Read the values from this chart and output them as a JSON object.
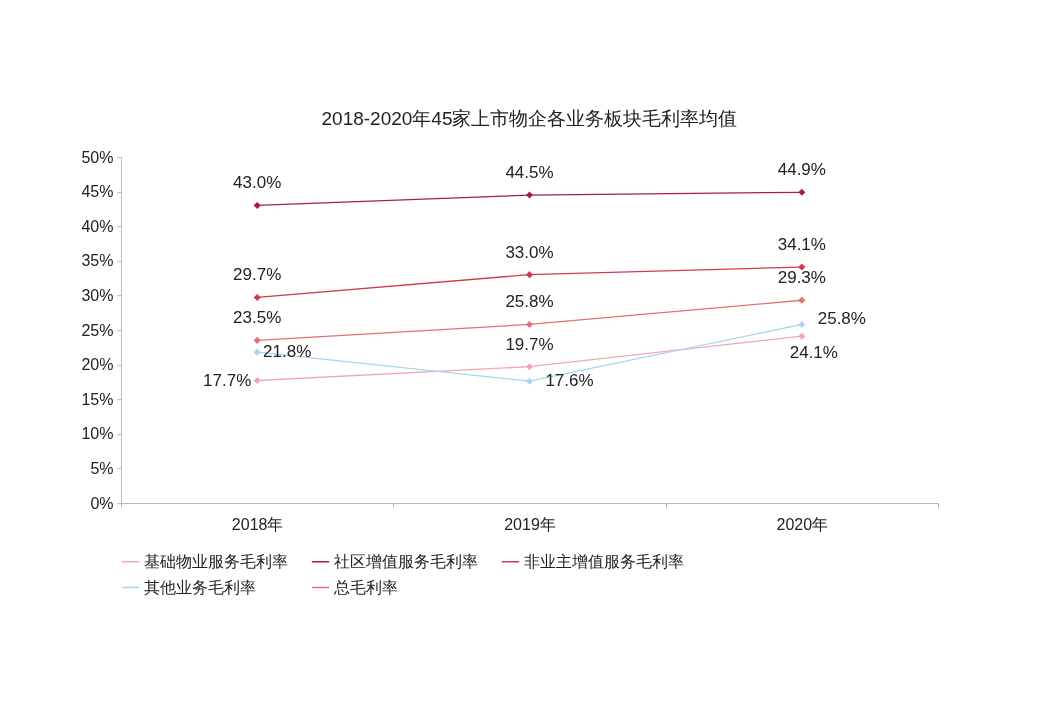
{
  "chart_data": {
    "type": "line",
    "title": "2018-2020年45家上市物企各业务板块毛利率均值",
    "categories": [
      "2018年",
      "2019年",
      "2020年"
    ],
    "series": [
      {
        "name": "基础物业服务毛利率",
        "color": "#f0a8b8",
        "values": [
          17.7,
          19.7,
          24.1
        ],
        "value_labels": [
          "17.7%",
          "19.7%",
          "24.1%"
        ]
      },
      {
        "name": "社区增值服务毛利率",
        "color": "#a3203c",
        "values": [
          43.0,
          44.5,
          44.9
        ],
        "value_labels": [
          "43.0%",
          "44.5%",
          "44.9%"
        ]
      },
      {
        "name": "非业主增值服务毛利率",
        "color": "#d23a4c",
        "values": [
          29.7,
          33.0,
          34.1
        ],
        "value_labels": [
          "29.7%",
          "33.0%",
          "34.1%"
        ]
      },
      {
        "name": "其他业务毛利率",
        "color": "#a9d6ee",
        "values": [
          21.8,
          17.6,
          25.8
        ],
        "value_labels": [
          "21.8%",
          "17.6%",
          "25.8%"
        ]
      },
      {
        "name": "总毛利率",
        "color": "#e07275",
        "values": [
          23.5,
          25.8,
          29.3
        ],
        "value_labels": [
          "23.5%",
          "25.8%",
          "29.3%"
        ]
      }
    ],
    "ylim": [
      0,
      50
    ],
    "yticks": [
      {
        "value": 0,
        "label": "0%"
      },
      {
        "value": 5,
        "label": "5%"
      },
      {
        "value": 10,
        "label": "10%"
      },
      {
        "value": 15,
        "label": "15%"
      },
      {
        "value": 20,
        "label": "20%"
      },
      {
        "value": 25,
        "label": "25%"
      },
      {
        "value": 30,
        "label": "30%"
      },
      {
        "value": 35,
        "label": "35%"
      },
      {
        "value": 40,
        "label": "40%"
      },
      {
        "value": 45,
        "label": "45%"
      },
      {
        "value": 50,
        "label": "50%"
      }
    ],
    "grid": false,
    "legend": "bottom",
    "marker": "diamond",
    "line_style": "solid"
  }
}
